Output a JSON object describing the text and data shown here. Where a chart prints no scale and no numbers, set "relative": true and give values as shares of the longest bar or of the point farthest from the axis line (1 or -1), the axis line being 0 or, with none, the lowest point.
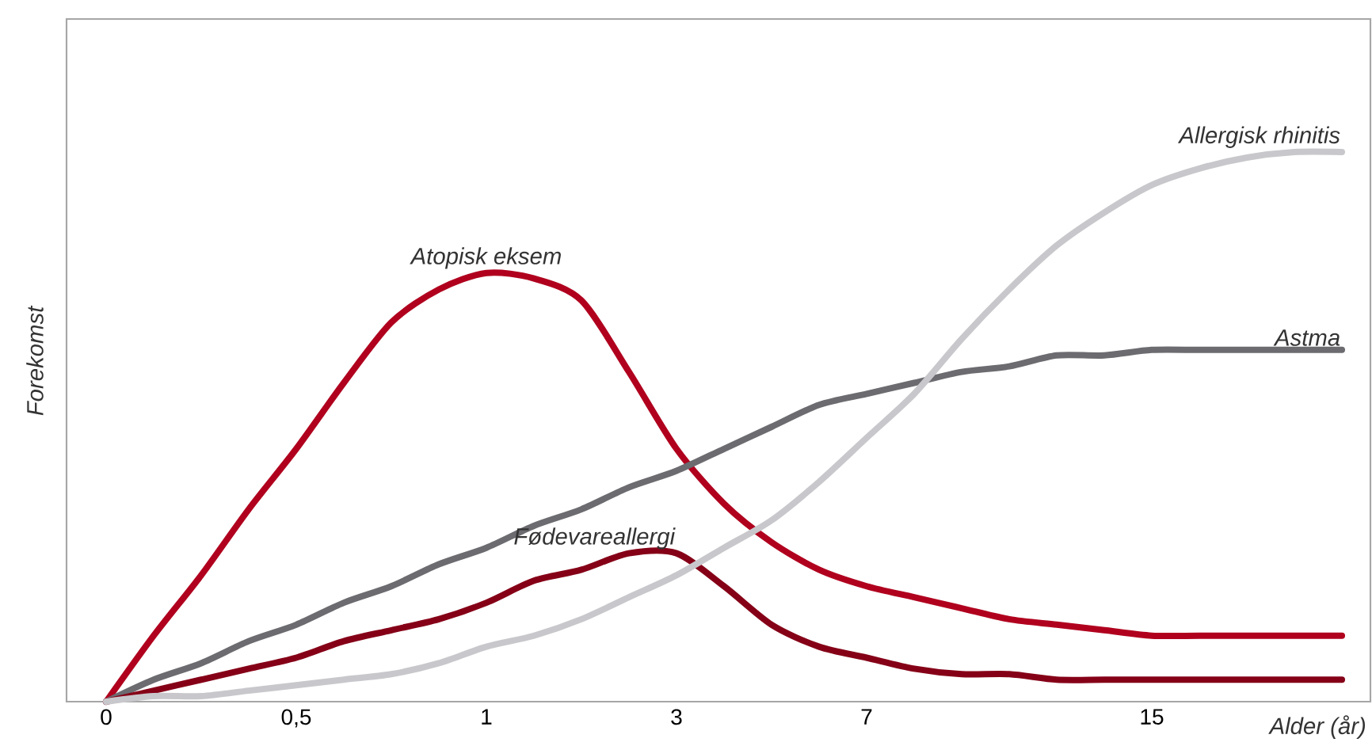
{
  "chart_data": {
    "type": "line",
    "relative": true,
    "xlabel": "Alder (år)",
    "ylabel": "Forekomst",
    "tick_labels": "x",
    "grid": false,
    "categories": [
      "0",
      null,
      null,
      null,
      "0,5",
      null,
      null,
      null,
      "1",
      null,
      null,
      null,
      "3",
      null,
      null,
      null,
      "7",
      null,
      null,
      null,
      null,
      null,
      "15",
      null,
      null,
      null,
      null
    ],
    "series": [
      {
        "name": "Atopisk eksem",
        "color": "#b0001e",
        "values": [
          0,
          0.12,
          0.23,
          0.35,
          0.46,
          0.58,
          0.69,
          0.75,
          0.78,
          0.77,
          0.73,
          0.6,
          0.46,
          0.36,
          0.29,
          0.24,
          0.21,
          0.19,
          0.17,
          0.15,
          0.14,
          0.13,
          0.12,
          0.12,
          0.12,
          0.12,
          0.12
        ]
      },
      {
        "name": "Astma",
        "color": "#6b6b70",
        "values": [
          0,
          0.04,
          0.07,
          0.11,
          0.14,
          0.18,
          0.21,
          0.25,
          0.28,
          0.32,
          0.35,
          0.39,
          0.42,
          0.46,
          0.5,
          0.54,
          0.56,
          0.58,
          0.6,
          0.61,
          0.63,
          0.63,
          0.64,
          0.64,
          0.64,
          0.64,
          0.64
        ]
      },
      {
        "name": "Fødevareallergi",
        "color": "#850017",
        "values": [
          0,
          0.02,
          0.04,
          0.06,
          0.08,
          0.11,
          0.13,
          0.15,
          0.18,
          0.22,
          0.24,
          0.27,
          0.27,
          0.21,
          0.14,
          0.1,
          0.08,
          0.06,
          0.05,
          0.05,
          0.04,
          0.04,
          0.04,
          0.04,
          0.04,
          0.04,
          0.04
        ]
      },
      {
        "name": "Allergisk rhinitis",
        "color": "#c8c8cc",
        "values": [
          0,
          0.01,
          0.01,
          0.02,
          0.03,
          0.04,
          0.05,
          0.07,
          0.1,
          0.12,
          0.15,
          0.19,
          0.23,
          0.28,
          0.33,
          0.4,
          0.48,
          0.56,
          0.66,
          0.75,
          0.83,
          0.89,
          0.94,
          0.97,
          0.99,
          1.0,
          1
        ]
      }
    ]
  }
}
